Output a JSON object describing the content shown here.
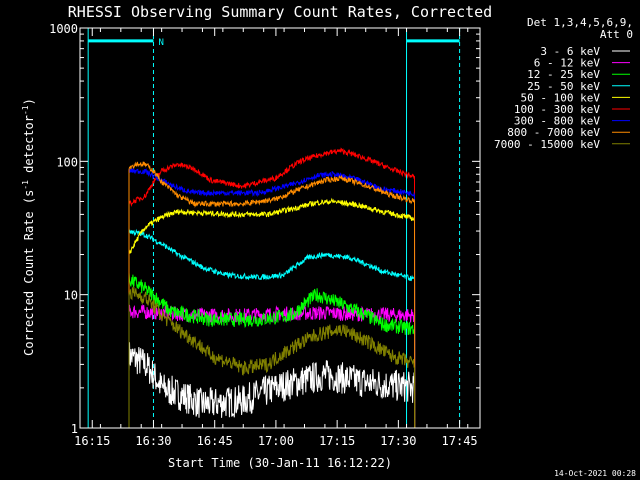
{
  "chart_data": {
    "type": "line",
    "title": "RHESSI Observing Summary Count Rates, Corrected",
    "xlabel": "Start Time (30-Jan-11 16:12:22)",
    "ylabel": "Corrected Count Rate (s",
    "ylabel_sup1": "-1",
    "ylabel_mid": " detector",
    "ylabel_sup2": "-1",
    "ylabel_end": ")",
    "yscale": "log",
    "ylim": [
      1,
      1000
    ],
    "y_ticks": [
      {
        "value": 1,
        "label": "1"
      },
      {
        "value": 10,
        "label": "10"
      },
      {
        "value": 100,
        "label": "100"
      },
      {
        "value": 1000,
        "label": "1000"
      }
    ],
    "xlim_minutes": [
      0,
      98
    ],
    "x_ticks": [
      {
        "minute": 3,
        "label": "16:15"
      },
      {
        "minute": 18,
        "label": "16:30"
      },
      {
        "minute": 33,
        "label": "16:45"
      },
      {
        "minute": 48,
        "label": "17:00"
      },
      {
        "minute": 63,
        "label": "17:15"
      },
      {
        "minute": 78,
        "label": "17:30"
      },
      {
        "minute": 93,
        "label": "17:45"
      }
    ],
    "detectors_line1": "Det 1,3,4,5,6,9,",
    "detectors_line2": "Att 0",
    "night_marker": "N",
    "attenuator_level": 800,
    "night_intervals_minutes": [
      [
        2,
        18
      ],
      [
        80,
        93
      ]
    ],
    "saa_lines_minutes": [
      2,
      80
    ],
    "timestamp": "14-Oct-2021 00:28",
    "series": [
      {
        "name": "3 - 6 keV",
        "color": "#ffffff",
        "x": [
          12,
          16,
          20,
          30,
          40,
          48,
          60,
          70,
          82
        ],
        "values": [
          3.5,
          3.0,
          2.0,
          1.5,
          1.6,
          2.0,
          2.5,
          2.2,
          2.0
        ]
      },
      {
        "name": "6 - 12 keV",
        "color": "#ff00ff",
        "x": [
          12,
          20,
          30,
          40,
          50,
          60,
          70,
          82
        ],
        "values": [
          7.5,
          7.3,
          7.0,
          7.0,
          7.2,
          7.3,
          7.1,
          7.0
        ]
      },
      {
        "name": "12 - 25 keV",
        "color": "#00ff00",
        "x": [
          12,
          16,
          22,
          32,
          44,
          52,
          58,
          66,
          74,
          82
        ],
        "values": [
          13,
          11,
          7.5,
          6.5,
          6.5,
          7.0,
          10,
          8.0,
          6.0,
          5.5
        ]
      },
      {
        "name": "25 - 50 keV",
        "color": "#00ffff",
        "x": [
          12,
          16,
          20,
          24,
          30,
          36,
          44,
          50,
          56,
          60,
          66,
          74,
          82
        ],
        "values": [
          30,
          28,
          24,
          20,
          16,
          14,
          13.5,
          14,
          19,
          20,
          19,
          15,
          13
        ]
      },
      {
        "name": "50 - 100 keV",
        "color": "#ffff00",
        "x": [
          12,
          14,
          16,
          20,
          24,
          30,
          38,
          46,
          52,
          58,
          62,
          68,
          74,
          82
        ],
        "values": [
          20,
          26,
          32,
          38,
          42,
          41,
          40,
          40,
          44,
          49,
          50,
          47,
          42,
          37
        ]
      },
      {
        "name": "100 - 300 keV",
        "color": "#ff0000",
        "x": [
          12,
          16,
          18,
          20,
          24,
          28,
          32,
          40,
          48,
          54,
          60,
          64,
          70,
          76,
          82
        ],
        "values": [
          48,
          55,
          70,
          85,
          95,
          88,
          72,
          65,
          75,
          100,
          115,
          120,
          105,
          88,
          76
        ]
      },
      {
        "name": "300 - 800 keV",
        "color": "#0000ff",
        "x": [
          12,
          16,
          20,
          24,
          28,
          34,
          44,
          52,
          58,
          62,
          68,
          74,
          82
        ],
        "values": [
          85,
          84,
          72,
          63,
          58,
          58,
          58,
          67,
          78,
          80,
          73,
          62,
          57
        ]
      },
      {
        "name": "800 - 7000 keV",
        "color": "#ff8c00",
        "x": [
          12,
          14,
          16,
          18,
          20,
          24,
          28,
          34,
          40,
          48,
          54,
          60,
          64,
          70,
          76,
          82
        ],
        "values": [
          90,
          96,
          95,
          85,
          70,
          55,
          48,
          48,
          48,
          52,
          62,
          72,
          75,
          66,
          56,
          50
        ]
      },
      {
        "name": "7000 - 15000 keV",
        "color": "#808000",
        "x": [
          12,
          16,
          20,
          24,
          28,
          32,
          40,
          46,
          52,
          58,
          64,
          70,
          76,
          82
        ],
        "values": [
          10.5,
          9.5,
          7.0,
          5.5,
          4.5,
          3.5,
          2.8,
          3.0,
          4.0,
          5.0,
          5.5,
          4.5,
          3.5,
          3.0
        ]
      }
    ]
  }
}
